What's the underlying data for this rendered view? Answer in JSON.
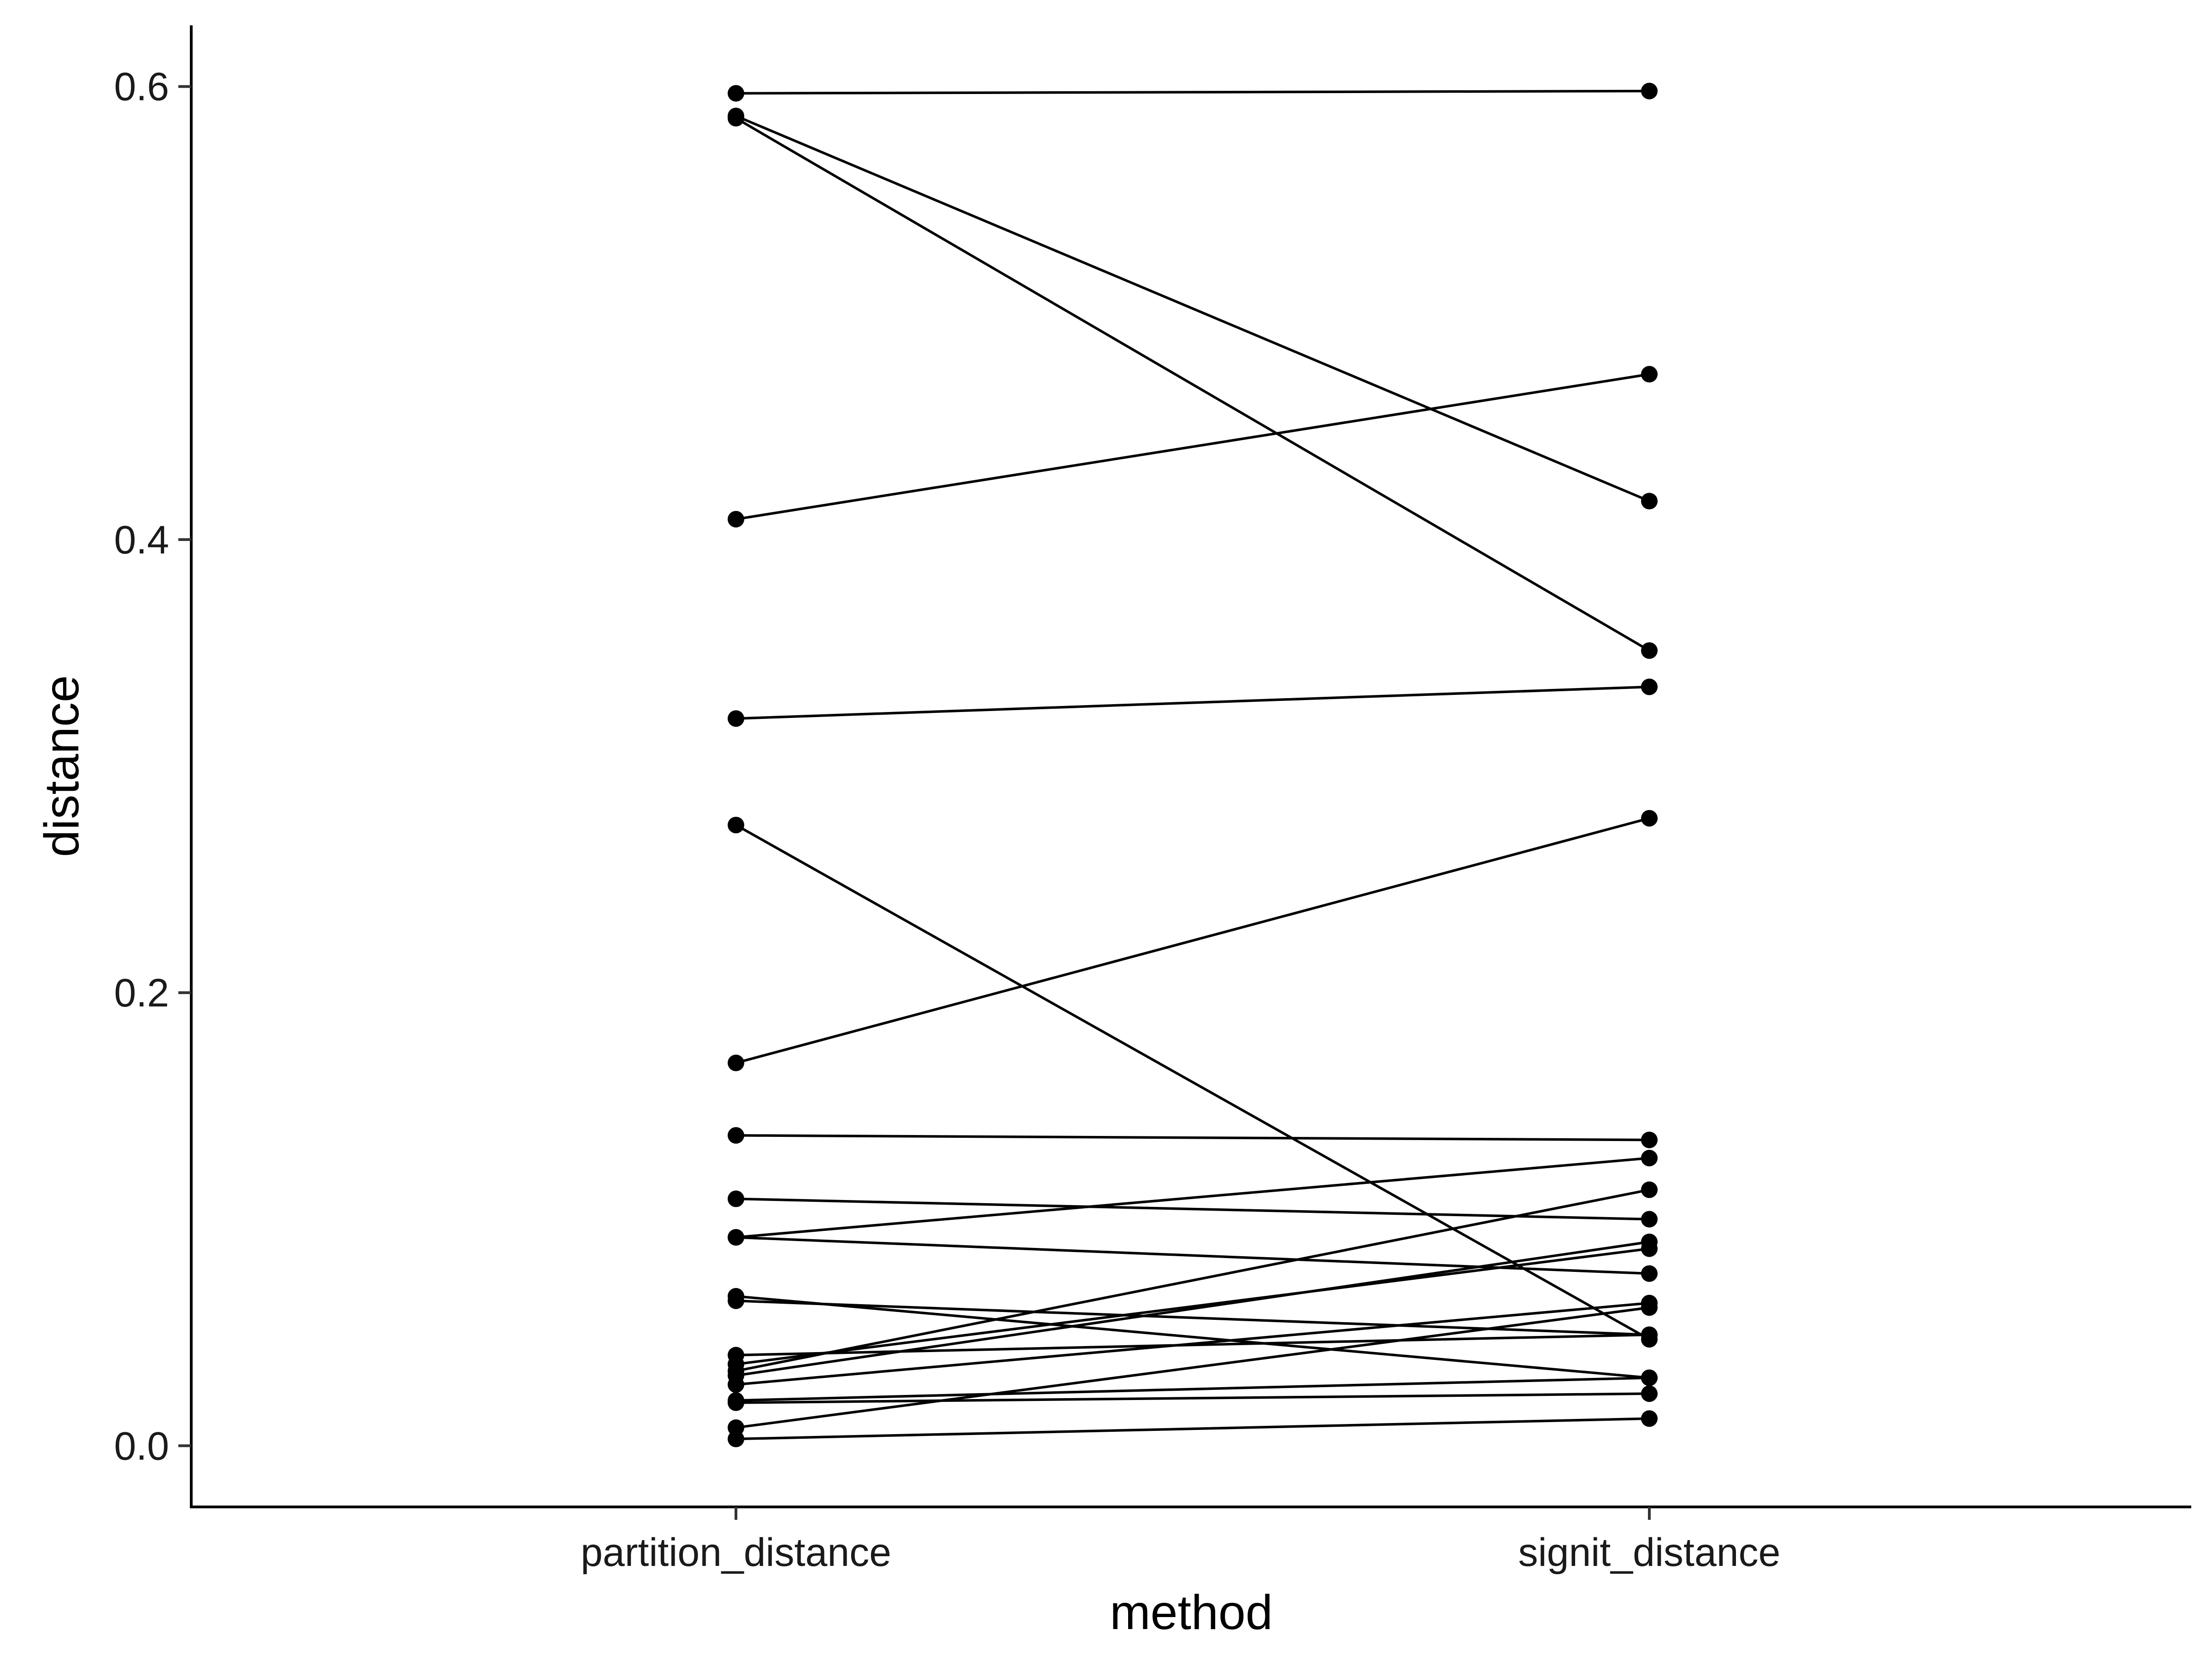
{
  "chart_data": {
    "type": "line",
    "xlabel": "method",
    "ylabel": "distance",
    "categories": [
      "partition_distance",
      "signit_distance"
    ],
    "ylim": [
      -0.027,
      0.627
    ],
    "yticks": [
      0.0,
      0.2,
      0.4,
      0.6
    ],
    "ytick_labels": [
      "0.0",
      "0.2",
      "0.4",
      "0.6"
    ],
    "grid": false,
    "legend": "none",
    "colors": {
      "line": "#000000",
      "point": "#000000",
      "axis": "#000000"
    },
    "pairs": [
      [
        0.597,
        0.598
      ],
      [
        0.587,
        0.417
      ],
      [
        0.586,
        0.351
      ],
      [
        0.409,
        0.473
      ],
      [
        0.321,
        0.335
      ],
      [
        0.274,
        0.047
      ],
      [
        0.169,
        0.277
      ],
      [
        0.137,
        0.135
      ],
      [
        0.109,
        0.1
      ],
      [
        0.092,
        0.127
      ],
      [
        0.092,
        0.076
      ],
      [
        0.066,
        0.03
      ],
      [
        0.064,
        0.049
      ],
      [
        0.04,
        0.049
      ],
      [
        0.036,
        0.087
      ],
      [
        0.033,
        0.113
      ],
      [
        0.031,
        0.09
      ],
      [
        0.027,
        0.063
      ],
      [
        0.02,
        0.03
      ],
      [
        0.019,
        0.023
      ],
      [
        0.008,
        0.061
      ],
      [
        0.003,
        0.012
      ]
    ]
  }
}
